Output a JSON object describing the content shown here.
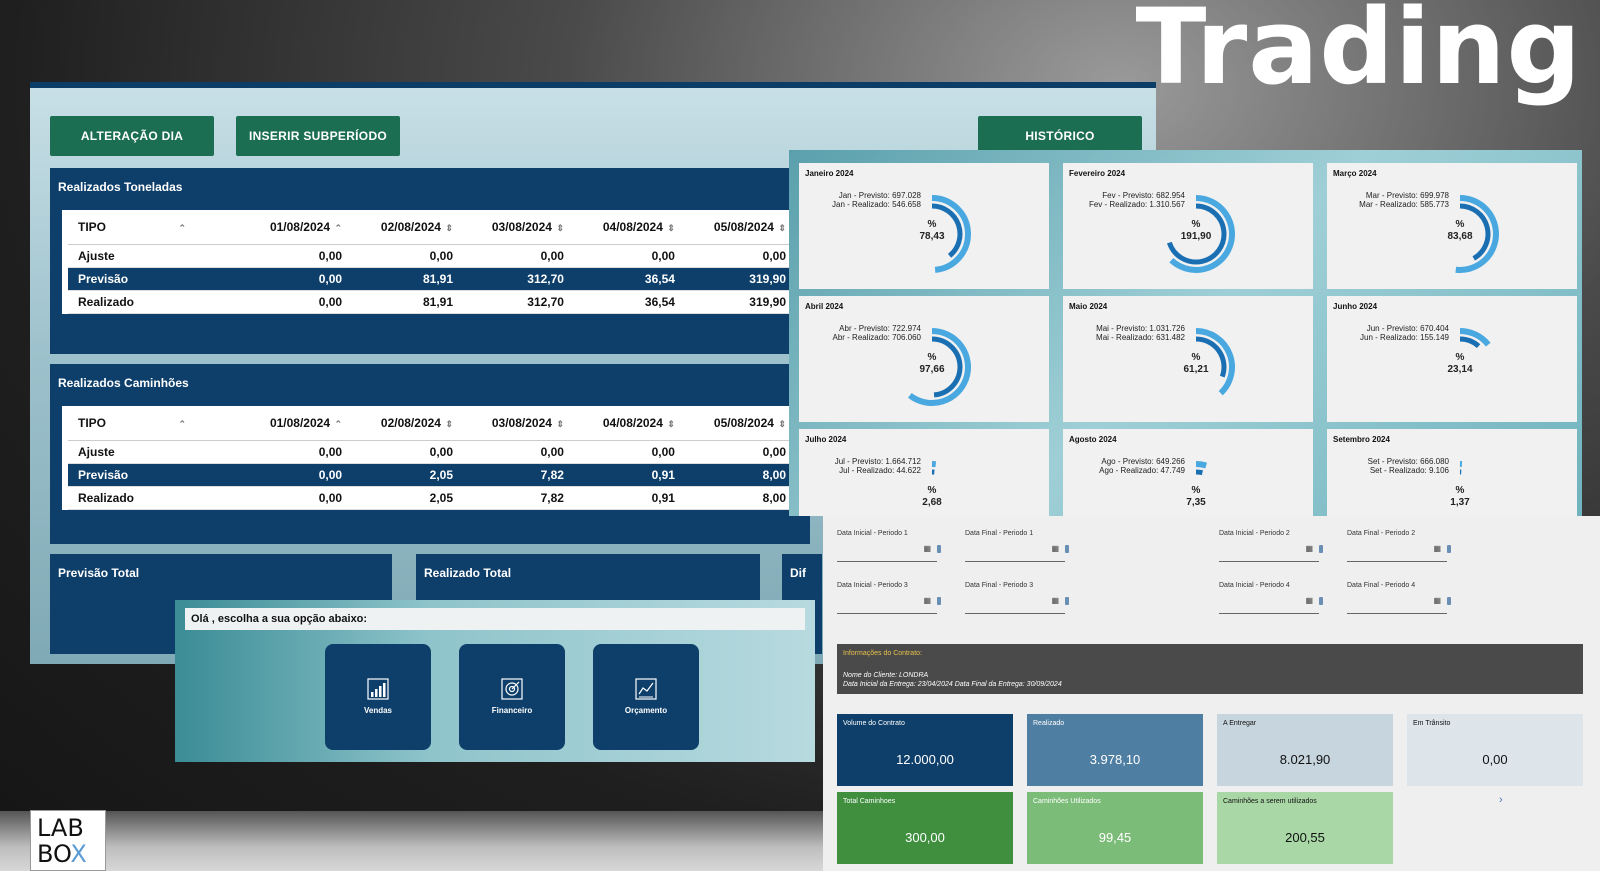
{
  "hero": {
    "title": "Trading"
  },
  "toolbar": {
    "alteracao_dia": "ALTERAÇÃO DIA",
    "inserir_subperiodo": "INSERIR SUBPERÍODO",
    "historico": "HISTÓRICO"
  },
  "toneladas": {
    "title": "Realizados Toneladas",
    "columns": [
      "TIPO",
      "01/08/2024",
      "02/08/2024",
      "03/08/2024",
      "04/08/2024",
      "05/08/2024"
    ],
    "rows": [
      {
        "tipo": "Ajuste",
        "values": [
          "0,00",
          "0,00",
          "0,00",
          "0,00",
          "0,00"
        ]
      },
      {
        "tipo": "Previsão",
        "values": [
          "0,00",
          "81,91",
          "312,70",
          "36,54",
          "319,90"
        ]
      },
      {
        "tipo": "Realizado",
        "values": [
          "0,00",
          "81,91",
          "312,70",
          "36,54",
          "319,90"
        ]
      }
    ]
  },
  "caminhoes": {
    "title": "Realizados Caminhões",
    "columns": [
      "TIPO",
      "01/08/2024",
      "02/08/2024",
      "03/08/2024",
      "04/08/2024",
      "05/08/2024"
    ],
    "rows": [
      {
        "tipo": "Ajuste",
        "values": [
          "0,00",
          "0,00",
          "0,00",
          "0,00",
          "0,00"
        ]
      },
      {
        "tipo": "Previsão",
        "values": [
          "0,00",
          "2,05",
          "7,82",
          "0,91",
          "8,00"
        ]
      },
      {
        "tipo": "Realizado",
        "values": [
          "0,00",
          "2,05",
          "7,82",
          "0,91",
          "8,00"
        ]
      }
    ]
  },
  "totals": {
    "previsao": "Previsão Total",
    "realizado": "Realizado Total",
    "diferenca": "Dif"
  },
  "menu": {
    "greeting": "Olá , escolha a sua opção abaixo:",
    "options": [
      {
        "label": "Vendas",
        "icon": "chart-icon"
      },
      {
        "label": "Financeiro",
        "icon": "target-icon"
      },
      {
        "label": "Orçamento",
        "icon": "budget-icon"
      }
    ]
  },
  "months": [
    {
      "title": "Janeiro 2024",
      "line1": "Jan - Previsto: 697.028",
      "line2": "Jan - Realizado: 546.658",
      "pct": "78,43",
      "value": 78.43
    },
    {
      "title": "Fevereiro 2024",
      "line1": "Fev - Previsto: 682.954",
      "line2": "Fev - Realizado: 1.310.567",
      "pct": "191,90",
      "value": 191.9
    },
    {
      "title": "Março 2024",
      "line1": "Mar - Previsto: 699.978",
      "line2": "Mar - Realizado: 585.773",
      "pct": "83,68",
      "value": 83.68
    },
    {
      "title": "Abril 2024",
      "line1": "Abr - Previsto: 722.974",
      "line2": "Abr - Realizado: 706.060",
      "pct": "97,66",
      "value": 97.66
    },
    {
      "title": "Maio 2024",
      "line1": "Mai - Previsto: 1.031.726",
      "line2": "Mai - Realizado: 631.482",
      "pct": "61,21",
      "value": 61.21
    },
    {
      "title": "Junho 2024",
      "line1": "Jun - Previsto: 670.404",
      "line2": "Jun - Realizado: 155.149",
      "pct": "23,14",
      "value": 23.14
    },
    {
      "title": "Julho 2024",
      "line1": "Jul - Previsto: 1.664.712",
      "line2": "Jul - Realizado: 44.622",
      "pct": "2,68",
      "value": 2.68
    },
    {
      "title": "Agosto 2024",
      "line1": "Ago - Previsto: 649.266",
      "line2": "Ago - Realizado: 47.749",
      "pct": "7,35",
      "value": 7.35
    },
    {
      "title": "Setembro 2024",
      "line1": "Set - Previsto: 666.080",
      "line2": "Set - Realizado: 9.106",
      "pct": "1,37",
      "value": 1.37
    }
  ],
  "pct_symbol": "%",
  "periods": [
    "Data Inicial - Periodo 1",
    "Data Final - Periodo 1",
    "Data Inicial - Periodo 2",
    "Data Final - Periodo 2",
    "Data Inicial - Periodo 3",
    "Data Final - Periodo 3",
    "Data Inicial - Periodo 4",
    "Data Final - Periodo 4"
  ],
  "contract": {
    "header": "Informações do Contrato:",
    "client": "Nome do Cliente: LONDRA",
    "dates": "Data Inicial da Entrega: 23/04/2024 Data Final da Entrega: 30/09/2024"
  },
  "kpis": [
    {
      "label": "Volume do Contrato",
      "value": "12.000,00",
      "bg": "#0e3f6a",
      "fg": "#ffffff"
    },
    {
      "label": "Realizado",
      "value": "3.978,10",
      "bg": "#4f7ea3",
      "fg": "#ffffff"
    },
    {
      "label": "A Entregar",
      "value": "8.021,90",
      "bg": "#c7d5de",
      "fg": "#111111"
    },
    {
      "label": "Em Trânsito",
      "value": "0,00",
      "bg": "#dde5ea",
      "fg": "#111111"
    },
    {
      "label": "Total Caminhoes",
      "value": "300,00",
      "bg": "#3f8f3f",
      "fg": "#ffffff"
    },
    {
      "label": "Caminhões Utilizados",
      "value": "99,45",
      "bg": "#7cbc79",
      "fg": "#ffffff"
    },
    {
      "label": "Caminhões a serem utilizados",
      "value": "200,55",
      "bg": "#a9d8a6",
      "fg": "#111111"
    }
  ],
  "logo": {
    "line1": "LAB",
    "line2": "BO",
    "x": "X"
  }
}
